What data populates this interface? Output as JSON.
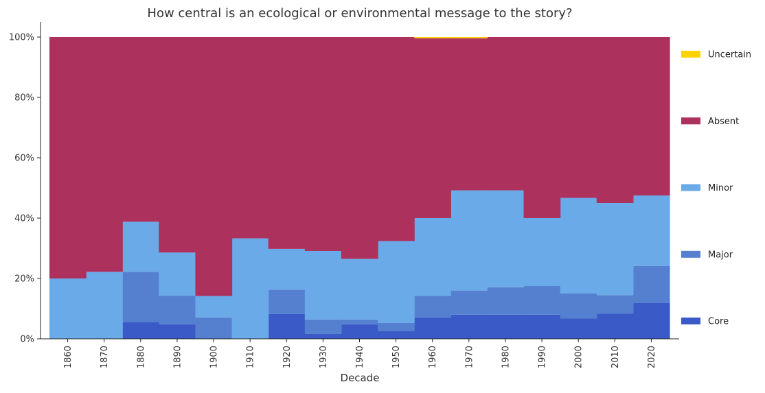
{
  "chart_data": {
    "type": "stacked-area-step",
    "title": "How central is an ecological or environmental message to the story?",
    "xlabel": "Decade",
    "ylabel": "",
    "ylim": [
      0,
      1
    ],
    "y_ticks": [
      "0%",
      "20%",
      "40%",
      "60%",
      "80%",
      "100%"
    ],
    "y_tick_values": [
      0,
      0.2,
      0.4,
      0.6,
      0.8,
      1.0
    ],
    "categories": [
      "1860",
      "1870",
      "1880",
      "1890",
      "1900",
      "1910",
      "1920",
      "1930",
      "1940",
      "1950",
      "1960",
      "1970",
      "1980",
      "1990",
      "2000",
      "2010",
      "2020"
    ],
    "series": [
      {
        "name": "Core",
        "color": "#3a5bc7",
        "values": [
          0,
          0,
          0.056,
          0.048,
          0,
          0,
          0.082,
          0.016,
          0.048,
          0.025,
          0.071,
          0.08,
          0.08,
          0.08,
          0.067,
          0.083,
          0.119
        ]
      },
      {
        "name": "Major",
        "color": "#5580d0",
        "values": [
          0,
          0,
          0.166,
          0.095,
          0.071,
          0,
          0.081,
          0.048,
          0.016,
          0.028,
          0.071,
          0.08,
          0.091,
          0.095,
          0.083,
          0.062,
          0.122
        ]
      },
      {
        "name": "Minor",
        "color": "#6aaae8",
        "values": [
          0.2,
          0.222,
          0.166,
          0.143,
          0.071,
          0.333,
          0.135,
          0.227,
          0.201,
          0.271,
          0.258,
          0.332,
          0.321,
          0.225,
          0.317,
          0.305,
          0.234
        ]
      },
      {
        "name": "Absent",
        "color": "#ac315c",
        "values": [
          0.8,
          0.778,
          0.612,
          0.714,
          0.858,
          0.667,
          0.702,
          0.709,
          0.735,
          0.676,
          0.596,
          0.504,
          0.508,
          0.6,
          0.533,
          0.55,
          0.525
        ]
      },
      {
        "name": "Uncertain",
        "color": "#ffd200",
        "values": [
          0,
          0,
          0,
          0,
          0,
          0,
          0,
          0,
          0,
          0,
          0.004,
          0.004,
          0,
          0,
          0,
          0,
          0
        ]
      }
    ],
    "legend_order": [
      "Uncertain",
      "Absent",
      "Minor",
      "Major",
      "Core"
    ],
    "legend_position": "right"
  }
}
